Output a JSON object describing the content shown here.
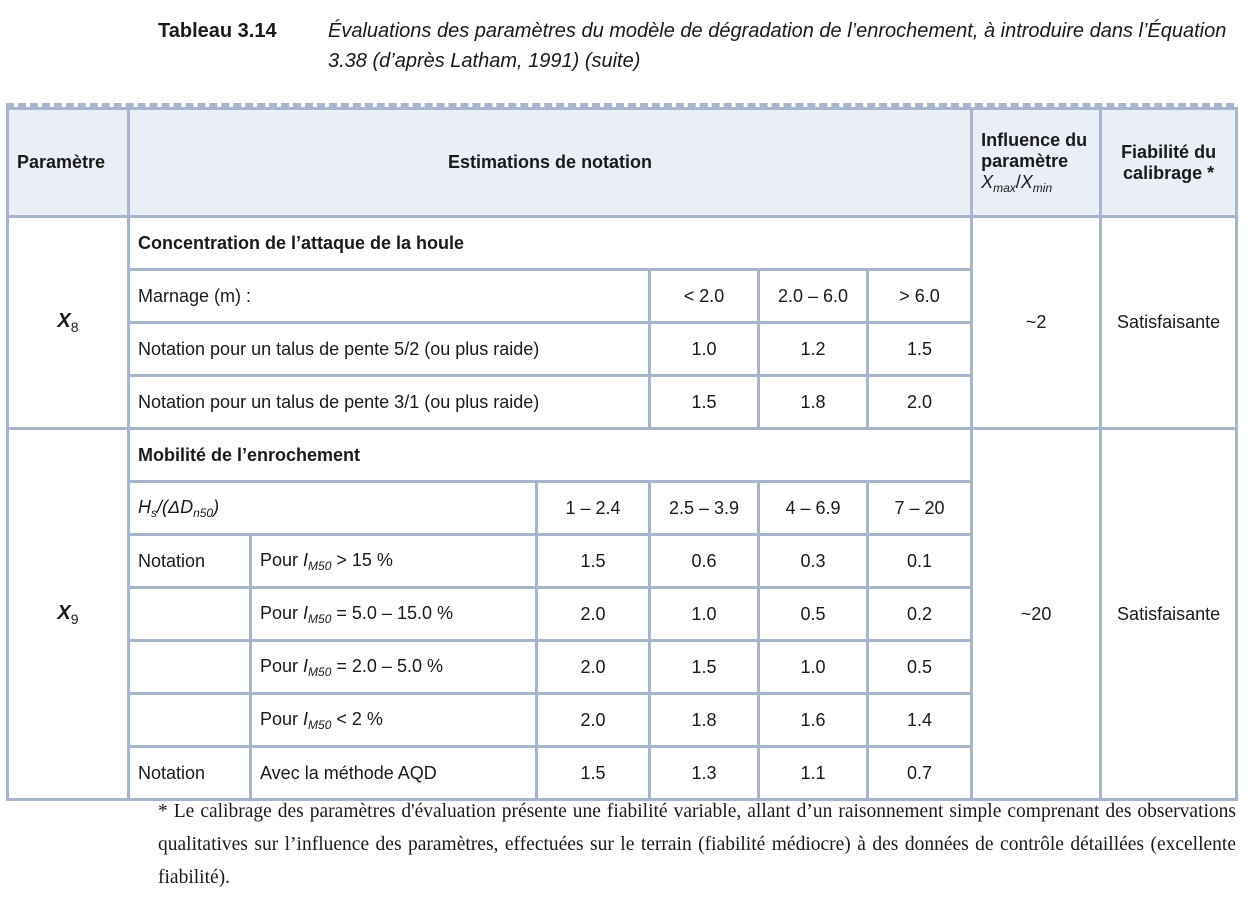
{
  "caption": {
    "number": "Tableau 3.14",
    "title": "Évaluations des paramètres du modèle de dégradation de l’enrochement, à introduire dans l’Équation 3.38 (d’après Latham, 1991) (suite)"
  },
  "header": {
    "param": "Paramètre",
    "estimations": "Estimations de notation",
    "influence_line1": "Influence du",
    "influence_line2": "paramètre",
    "influence_x": "X",
    "influence_max": "max",
    "influence_slash": "/",
    "influence_x2": "X",
    "influence_min": "min",
    "fiab_line1": "Fiabilité du",
    "fiab_line2": "calibrage *"
  },
  "x8": {
    "symbol": "X",
    "index": "8",
    "section_title": "Concentration de l’attaque de la houle",
    "marnage_label": "Marnage (m) :",
    "marnage_ranges": [
      "< 2.0",
      "2.0 – 6.0",
      "> 6.0"
    ],
    "rows": [
      {
        "label": "Notation pour un talus de pente 5/2 (ou plus raide)",
        "values": [
          "1.0",
          "1.2",
          "1.5"
        ]
      },
      {
        "label": "Notation pour un talus de pente 3/1 (ou plus raide)",
        "values": [
          "1.5",
          "1.8",
          "2.0"
        ]
      }
    ],
    "influence": "~2",
    "fiabilite": "Satisfaisante"
  },
  "x9": {
    "symbol": "X",
    "index": "9",
    "section_title": "Mobilité de l’enrochement",
    "hs_label": {
      "h": "H",
      "s": "s",
      "open": "/(ΔD",
      "n50": "n50",
      "close": ")"
    },
    "hs_ranges": [
      "1 – 2.4",
      "2.5 – 3.9",
      "4 – 6.9",
      "7 – 20"
    ],
    "notation_label": "Notation",
    "im_rows": [
      {
        "pour": "Pour ",
        "i": "I",
        "m50": "M50",
        "cond": " > 15 %",
        "values": [
          "1.5",
          "0.6",
          "0.3",
          "0.1"
        ]
      },
      {
        "pour": "Pour ",
        "i": "I",
        "m50": "M50",
        "cond": " = 5.0 – 15.0 %",
        "values": [
          "2.0",
          "1.0",
          "0.5",
          "0.2"
        ]
      },
      {
        "pour": "Pour ",
        "i": "I",
        "m50": "M50",
        "cond": " = 2.0 – 5.0 %",
        "values": [
          "2.0",
          "1.5",
          "1.0",
          "0.5"
        ]
      },
      {
        "pour": "Pour ",
        "i": "I",
        "m50": "M50",
        "cond": " < 2 %",
        "values": [
          "2.0",
          "1.8",
          "1.6",
          "1.4"
        ]
      }
    ],
    "aqd_row": {
      "notation": "Notation",
      "label": "Avec la méthode AQD",
      "values": [
        "1.5",
        "1.3",
        "1.1",
        "0.7"
      ]
    },
    "influence": "~20",
    "fiabilite": "Satisfaisante"
  },
  "footnote": "* Le calibrage des paramètres d'évaluation présente une fiabilité variable, allant d’un raisonnement simple comprenant des observations qualitatives sur l’influence des paramètres, effectuées sur le terrain (fiabilité médiocre) à des données de contrôle détaillées (excellente fiabilité)."
}
